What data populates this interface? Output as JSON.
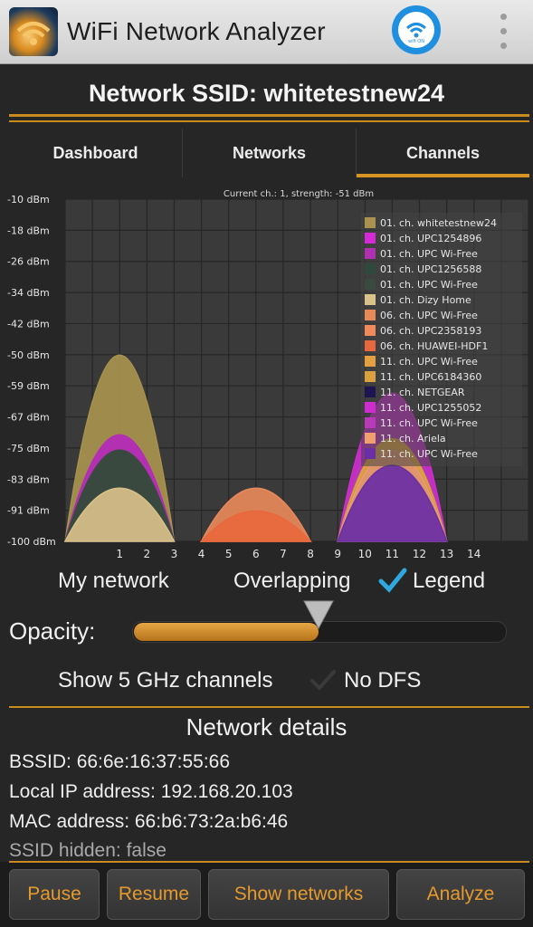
{
  "app": {
    "title": "WiFi Network Analyzer",
    "accent_color": "#d89423",
    "logo_icon": "wifi-analyzer-logo",
    "badge_icon": "wifi-badge-icon",
    "badge_text": "wifi ON"
  },
  "header": {
    "ssid_title": "Network SSID: whitetestnew24"
  },
  "tabs": [
    {
      "label": "Dashboard",
      "active": false
    },
    {
      "label": "Networks",
      "active": false
    },
    {
      "label": "Channels",
      "active": true
    }
  ],
  "chart_data": {
    "type": "area",
    "title": "Current ch.: 1, strength: -51 dBm",
    "ylabel_ticks": [
      "-10 dBm",
      "-18 dBm",
      "-26 dBm",
      "-34 dBm",
      "-42 dBm",
      "-50 dBm",
      "-59 dBm",
      "-67 dBm",
      "-75 dBm",
      "-83 dBm",
      "-91 dBm",
      "-100 dBm"
    ],
    "x_ticks": [
      1,
      2,
      3,
      4,
      5,
      6,
      7,
      8,
      9,
      10,
      11,
      12,
      13,
      14
    ],
    "xlim": [
      -1,
      16
    ],
    "ylim": [
      -100,
      -10
    ],
    "grid": true,
    "legend_position": "top-right",
    "series": [
      {
        "name": "01. ch. whitetestnew24",
        "channel": 1,
        "peak": -51,
        "color": "#a8924e"
      },
      {
        "name": "01. ch. UPC1254896",
        "channel": 1,
        "peak": -72,
        "color": "#d62ad6"
      },
      {
        "name": "01. ch. UPC Wi-Free",
        "channel": 1,
        "peak": -72,
        "color": "#b030b0"
      },
      {
        "name": "01. ch. UPC1256588",
        "channel": 1,
        "peak": -76,
        "color": "#2f4a3c"
      },
      {
        "name": "01. ch. UPC Wi-Free",
        "channel": 1,
        "peak": -76,
        "color": "#3a4a3f"
      },
      {
        "name": "01. ch. Dizy Home",
        "channel": 1,
        "peak": -86,
        "color": "#d9c18a"
      },
      {
        "name": "06. ch. UPC Wi-Free",
        "channel": 6,
        "peak": -86,
        "color": "#e8895a"
      },
      {
        "name": "06. ch. UPC2358193",
        "channel": 6,
        "peak": -92,
        "color": "#f08a5d"
      },
      {
        "name": "06. ch. HUAWEI-HDF1",
        "channel": 6,
        "peak": -92,
        "color": "#e6683c"
      },
      {
        "name": "11. ch. UPC Wi-Free",
        "channel": 11,
        "peak": -73,
        "color": "#e2a040"
      },
      {
        "name": "11. ch. UPC6184360",
        "channel": 11,
        "peak": -73,
        "color": "#d9a23e"
      },
      {
        "name": "11. ch. NETGEAR",
        "channel": 11,
        "peak": -76,
        "color": "#1d1550"
      },
      {
        "name": "11. ch. UPC1255052",
        "channel": 11,
        "peak": -61,
        "color": "#cf2ccf"
      },
      {
        "name": "11. ch. UPC Wi-Free",
        "channel": 11,
        "peak": -69,
        "color": "#b93ab9"
      },
      {
        "name": "11. ch. Ariela",
        "channel": 11,
        "peak": -76,
        "color": "#f0a06e"
      },
      {
        "name": "11. ch. UPC Wi-Free",
        "channel": 11,
        "peak": -80,
        "color": "#6a2fa6"
      }
    ]
  },
  "controls": {
    "my_network": "My network",
    "overlapping": "Overlapping",
    "legend": "Legend",
    "legend_checked": true,
    "opacity_label": "Opacity:",
    "opacity_value": 0.5,
    "show_5ghz": "Show 5 GHz channels",
    "show_5ghz_checked": false,
    "no_dfs": "No DFS"
  },
  "details": {
    "title": "Network details",
    "bssid": "BSSID: 66:6e:16:37:55:66",
    "local_ip": "Local IP address: 192.168.20.103",
    "mac": "MAC address: 66:b6:73:2a:b6:46",
    "ssid_hidden": "SSID hidden: false"
  },
  "buttons": {
    "pause": "Pause",
    "resume": "Resume",
    "show_networks": "Show networks",
    "analyze": "Analyze"
  }
}
